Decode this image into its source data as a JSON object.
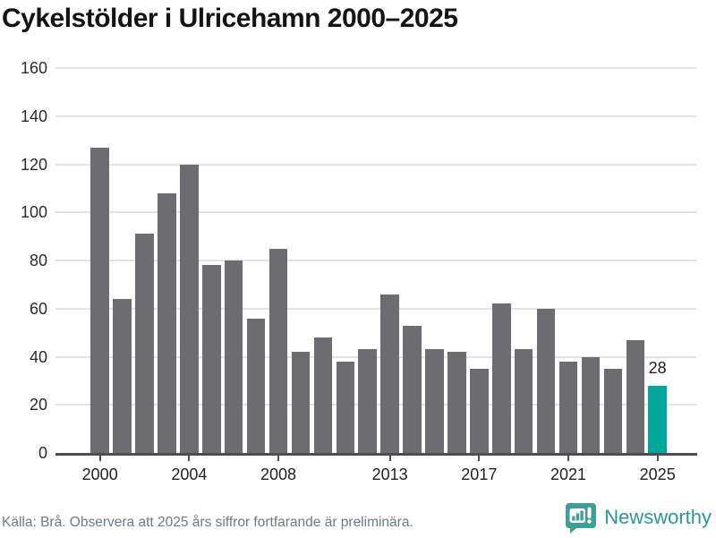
{
  "title": "Cykelstölder i Ulricehamn 2000–2025",
  "chart_data": {
    "type": "bar",
    "title": "Cykelstölder i Ulricehamn 2000–2025",
    "categories": [
      2000,
      2001,
      2002,
      2003,
      2004,
      2005,
      2006,
      2007,
      2008,
      2009,
      2010,
      2011,
      2012,
      2013,
      2014,
      2015,
      2016,
      2017,
      2018,
      2019,
      2020,
      2021,
      2022,
      2023,
      2024,
      2025
    ],
    "values": [
      127,
      64,
      91,
      108,
      120,
      78,
      80,
      56,
      85,
      42,
      48,
      38,
      43,
      66,
      53,
      43,
      42,
      35,
      62,
      43,
      60,
      38,
      40,
      35,
      47,
      28
    ],
    "xlabel": "",
    "ylabel": "",
    "ylim": [
      0,
      160
    ],
    "yticks": [
      0,
      20,
      40,
      60,
      80,
      100,
      120,
      140,
      160
    ],
    "xtick_years": [
      2000,
      2004,
      2008,
      2013,
      2017,
      2021,
      2025
    ],
    "grid": true,
    "legend_position": "none",
    "highlight_year": 2025,
    "highlight_value_label": "28",
    "bar_color": "#6d6d71",
    "highlight_color": "#00a59c",
    "grid_color": "#e3e3e3",
    "axis_color": "#4d4d4d"
  },
  "footer": {
    "source_text": "Källa: Brå. Observera att 2025 års siffror fortfarande är preliminära."
  },
  "brand": {
    "name": "Newsworthy",
    "icon": "newsworthy-speech-bubble-bar-chart-icon",
    "text_color": "#2e9693",
    "icon_color": "#3f9e97"
  }
}
